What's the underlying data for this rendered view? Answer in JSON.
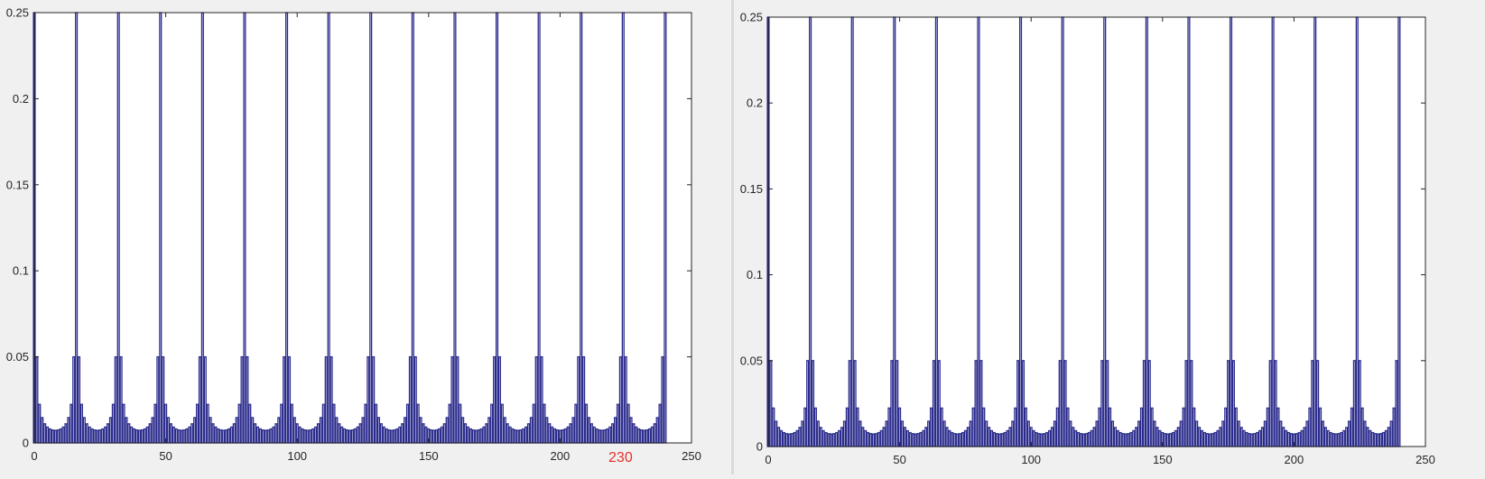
{
  "colors": {
    "bar": "#2b2b8c",
    "axes": "#262626",
    "annotation": "#e8302c",
    "figure_bg": "#f0f0f0",
    "plot_bg": "#ffffff"
  },
  "chart_data": [
    {
      "type": "bar",
      "x_start": 0,
      "x_step": 1,
      "bar_count": 241,
      "period": 16,
      "period_values": [
        0.25,
        0.05,
        0.0224,
        0.0147,
        0.0111,
        0.0092,
        0.0081,
        0.0075,
        0.0073,
        0.0075,
        0.0081,
        0.0092,
        0.0111,
        0.0147,
        0.0224,
        0.05
      ],
      "xlim": [
        0,
        250
      ],
      "ylim": [
        0,
        0.25
      ],
      "xticks": [
        "0",
        "50",
        "100",
        "150",
        "200",
        "250"
      ],
      "yticks": [
        "0",
        "0.05",
        "0.1",
        "0.15",
        "0.2",
        "0.25"
      ],
      "annotation": {
        "text": "230",
        "x": 223
      }
    },
    {
      "type": "bar",
      "x_start": 0,
      "x_step": 1,
      "bar_count": 241,
      "period": 16,
      "period_values": [
        0.25,
        0.05,
        0.0224,
        0.0147,
        0.0111,
        0.0092,
        0.0081,
        0.0075,
        0.0073,
        0.0075,
        0.0081,
        0.0092,
        0.0111,
        0.0147,
        0.0224,
        0.05
      ],
      "xlim": [
        0,
        250
      ],
      "ylim": [
        0,
        0.25
      ],
      "xticks": [
        "0",
        "50",
        "100",
        "150",
        "200",
        "250"
      ],
      "yticks": [
        "0",
        "0.05",
        "0.1",
        "0.15",
        "0.2",
        "0.25"
      ]
    }
  ]
}
